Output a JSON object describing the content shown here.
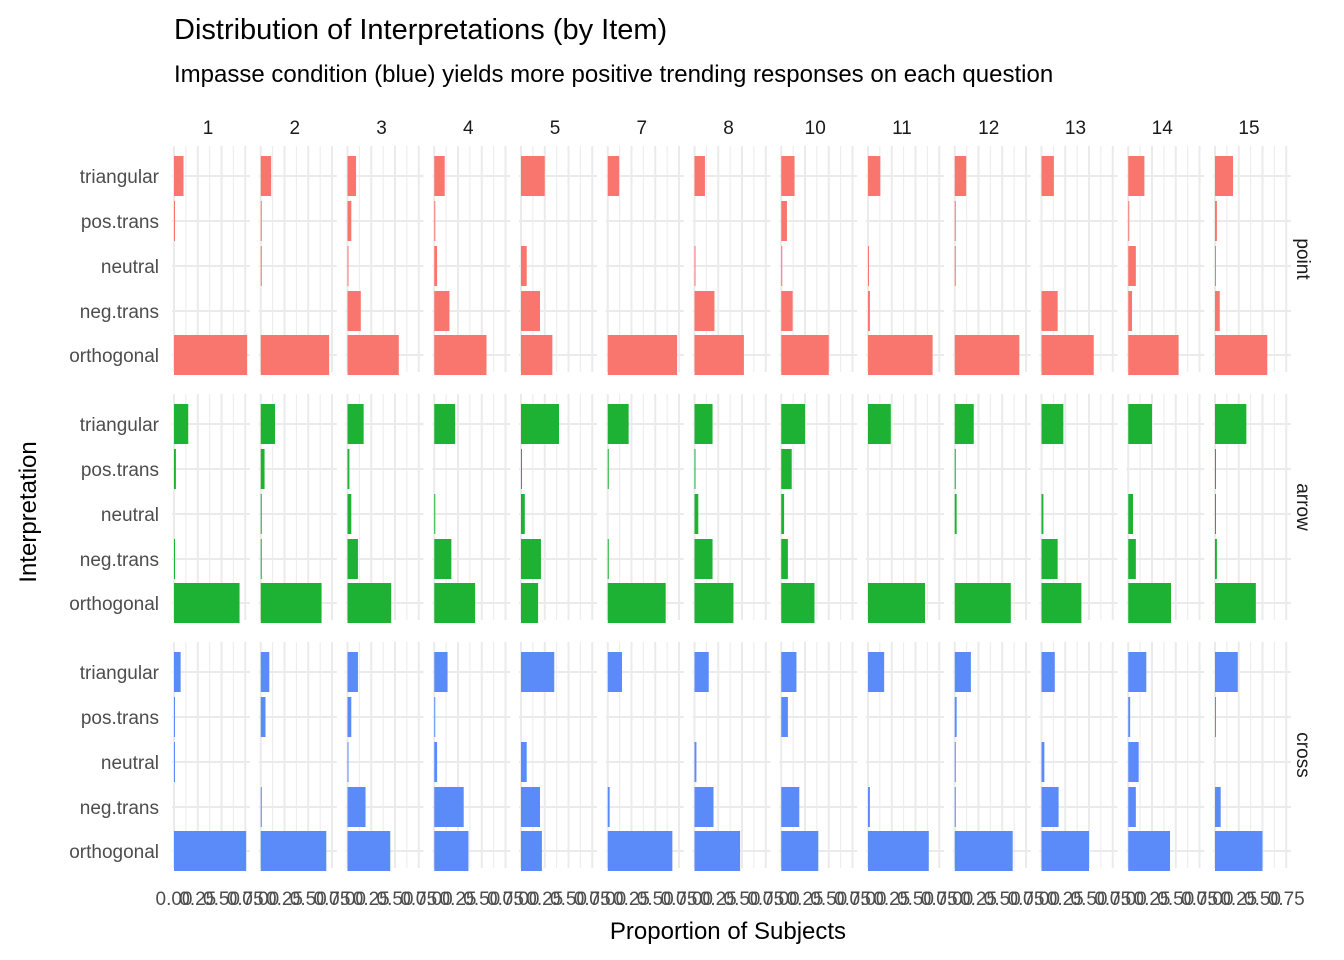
{
  "chart_data": {
    "type": "bar",
    "orientation": "horizontal",
    "title": "Distribution of Interpretations (by Item)",
    "subtitle": "Impasse condition (blue) yields more positive trending responses on each question",
    "xlabel": "Proportion of Subjects",
    "ylabel": "Interpretation",
    "xlim": [
      0,
      0.8
    ],
    "x_ticks": [
      "0.00",
      "0.25",
      "0.50",
      "0.75"
    ],
    "grid": true,
    "categories": [
      "triangular",
      "pos.trans",
      "neutral",
      "neg.trans",
      "orthogonal"
    ],
    "columns": [
      "1",
      "2",
      "3",
      "4",
      "5",
      "7",
      "8",
      "10",
      "11",
      "12",
      "13",
      "14",
      "15"
    ],
    "colors": {
      "point": "#F8766D",
      "arrow": "#1DB233",
      "cross": "#5B8BF8"
    },
    "rows": [
      {
        "name": "point",
        "values": [
          [
            0.1,
            0.01,
            0.0,
            0.0,
            0.77
          ],
          [
            0.11,
            0.01,
            0.01,
            0.0,
            0.72
          ],
          [
            0.09,
            0.04,
            0.01,
            0.14,
            0.54
          ],
          [
            0.11,
            0.01,
            0.03,
            0.16,
            0.55
          ],
          [
            0.25,
            0.0,
            0.06,
            0.2,
            0.33
          ],
          [
            0.12,
            0.0,
            0.0,
            0.0,
            0.73
          ],
          [
            0.11,
            0.0,
            0.01,
            0.21,
            0.52
          ],
          [
            0.14,
            0.06,
            0.01,
            0.12,
            0.5
          ],
          [
            0.13,
            0.0,
            0.01,
            0.02,
            0.68
          ],
          [
            0.12,
            0.01,
            0.01,
            0.0,
            0.68
          ],
          [
            0.13,
            0.0,
            0.0,
            0.17,
            0.55
          ],
          [
            0.17,
            0.01,
            0.08,
            0.04,
            0.53
          ],
          [
            0.19,
            0.02,
            0.01,
            0.05,
            0.55
          ]
        ]
      },
      {
        "name": "arrow",
        "values": [
          [
            0.15,
            0.02,
            0.0,
            0.01,
            0.69
          ],
          [
            0.15,
            0.04,
            0.01,
            0.01,
            0.64
          ],
          [
            0.17,
            0.02,
            0.04,
            0.11,
            0.46
          ],
          [
            0.22,
            0.0,
            0.01,
            0.18,
            0.43
          ],
          [
            0.4,
            0.01,
            0.04,
            0.21,
            0.18
          ],
          [
            0.22,
            0.01,
            0.0,
            0.01,
            0.61
          ],
          [
            0.19,
            0.01,
            0.04,
            0.19,
            0.41
          ],
          [
            0.25,
            0.11,
            0.03,
            0.07,
            0.35
          ],
          [
            0.24,
            0.0,
            0.0,
            0.0,
            0.6
          ],
          [
            0.2,
            0.01,
            0.02,
            0.0,
            0.59
          ],
          [
            0.23,
            0.0,
            0.02,
            0.17,
            0.42
          ],
          [
            0.25,
            0.0,
            0.05,
            0.08,
            0.45
          ],
          [
            0.33,
            0.01,
            0.01,
            0.02,
            0.43
          ]
        ]
      },
      {
        "name": "cross",
        "values": [
          [
            0.07,
            0.01,
            0.01,
            0.0,
            0.76
          ],
          [
            0.09,
            0.05,
            0.0,
            0.01,
            0.69
          ],
          [
            0.11,
            0.04,
            0.01,
            0.19,
            0.45
          ],
          [
            0.14,
            0.01,
            0.03,
            0.31,
            0.36
          ],
          [
            0.35,
            0.0,
            0.06,
            0.2,
            0.22
          ],
          [
            0.15,
            0.0,
            0.0,
            0.02,
            0.68
          ],
          [
            0.15,
            0.0,
            0.02,
            0.2,
            0.48
          ],
          [
            0.16,
            0.07,
            0.0,
            0.19,
            0.39
          ],
          [
            0.17,
            0.0,
            0.0,
            0.02,
            0.64
          ],
          [
            0.17,
            0.02,
            0.01,
            0.01,
            0.61
          ],
          [
            0.14,
            0.0,
            0.03,
            0.18,
            0.5
          ],
          [
            0.19,
            0.02,
            0.11,
            0.08,
            0.44
          ],
          [
            0.24,
            0.01,
            0.0,
            0.06,
            0.5
          ]
        ]
      }
    ]
  }
}
